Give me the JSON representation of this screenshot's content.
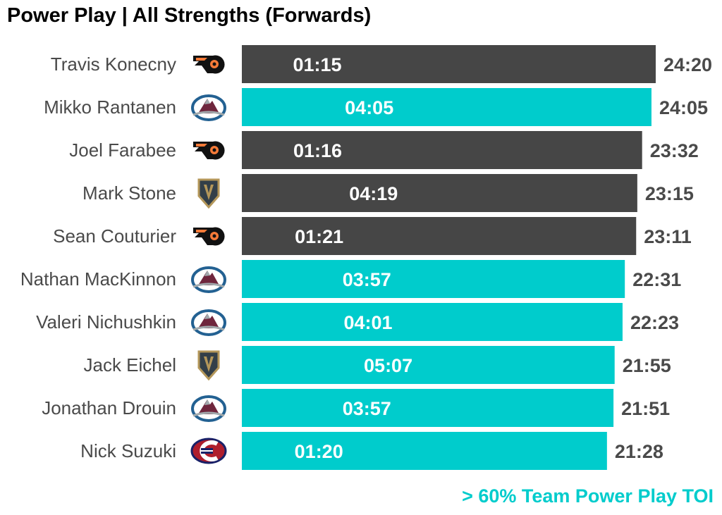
{
  "title": "Power Play | All Strengths (Forwards)",
  "colors": {
    "highlight": "#00cccc",
    "normal": "#464646",
    "label_dark": "#4a4a4a",
    "bar_text": "#ffffff"
  },
  "legend_note": "> 60% Team Power Play TOI",
  "team_logos": {
    "PHI": "flyers-logo-icon",
    "COL": "avalanche-logo-icon",
    "VGK": "golden-knights-logo-icon",
    "MTL": "canadiens-logo-icon"
  },
  "chart_data": {
    "type": "bar",
    "orientation": "horizontal",
    "title": "Power Play | All Strengths (Forwards)",
    "categories": [
      "Travis Konecny",
      "Mikko Rantanen",
      "Joel Farabee",
      "Mark Stone",
      "Sean Couturier",
      "Nathan MacKinnon",
      "Valeri Nichushkin",
      "Jack Eichel",
      "Jonathan Drouin",
      "Nick Suzuki"
    ],
    "teams": [
      "PHI",
      "COL",
      "PHI",
      "VGK",
      "PHI",
      "COL",
      "COL",
      "VGK",
      "COL",
      "MTL"
    ],
    "values": [
      24.333,
      24.083,
      23.533,
      23.25,
      23.183,
      22.517,
      22.383,
      21.917,
      21.85,
      21.467
    ],
    "value_labels": [
      "24:20",
      "24:05",
      "23:32",
      "23:15",
      "23:11",
      "22:31",
      "22:23",
      "21:55",
      "21:51",
      "21:28"
    ],
    "pp_values": [
      1.25,
      4.083,
      1.267,
      4.317,
      1.35,
      3.95,
      4.017,
      5.117,
      3.95,
      1.333
    ],
    "pp_labels": [
      "01:15",
      "04:05",
      "01:16",
      "04:19",
      "01:21",
      "03:57",
      "04:01",
      "05:07",
      "03:57",
      "01:20"
    ],
    "highlighted": [
      false,
      true,
      false,
      false,
      false,
      true,
      true,
      true,
      true,
      true
    ],
    "xlim": [
      0,
      24.333
    ],
    "xlabel": "",
    "ylabel": "",
    "grid": false,
    "legend": "bottom-right"
  }
}
